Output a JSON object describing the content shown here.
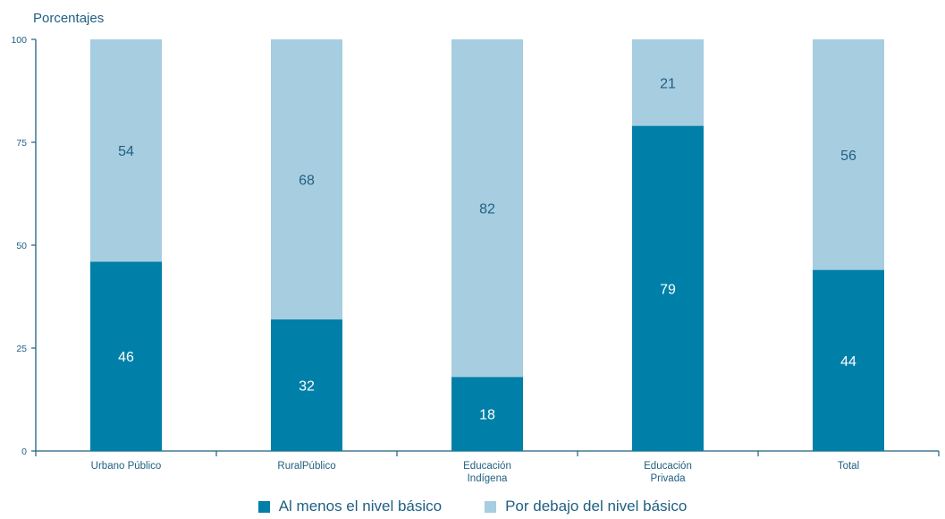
{
  "chart_data": {
    "type": "bar",
    "stacked": true,
    "ylabel": "Porcentajes",
    "ylim": [
      0,
      100
    ],
    "yticks": [
      "0",
      "25",
      "50",
      "75",
      "100"
    ],
    "categories": [
      [
        "Urbano Público"
      ],
      [
        "RuralPúblico"
      ],
      [
        "Educación",
        "Indígena"
      ],
      [
        "Educación",
        "Privada"
      ],
      [
        "Total"
      ]
    ],
    "series": [
      {
        "name": "Al menos el nivel básico",
        "color": "#0080a8",
        "values": [
          46,
          32,
          18,
          79,
          44
        ],
        "labels": [
          "46",
          "32",
          "18",
          "79",
          "44"
        ]
      },
      {
        "name": "Por debajo del nivel básico",
        "color": "#a7cde0",
        "values": [
          54,
          68,
          82,
          21,
          56
        ],
        "labels": [
          "54",
          "68",
          "82",
          "21",
          "56"
        ]
      }
    ],
    "legend_position": "bottom"
  }
}
